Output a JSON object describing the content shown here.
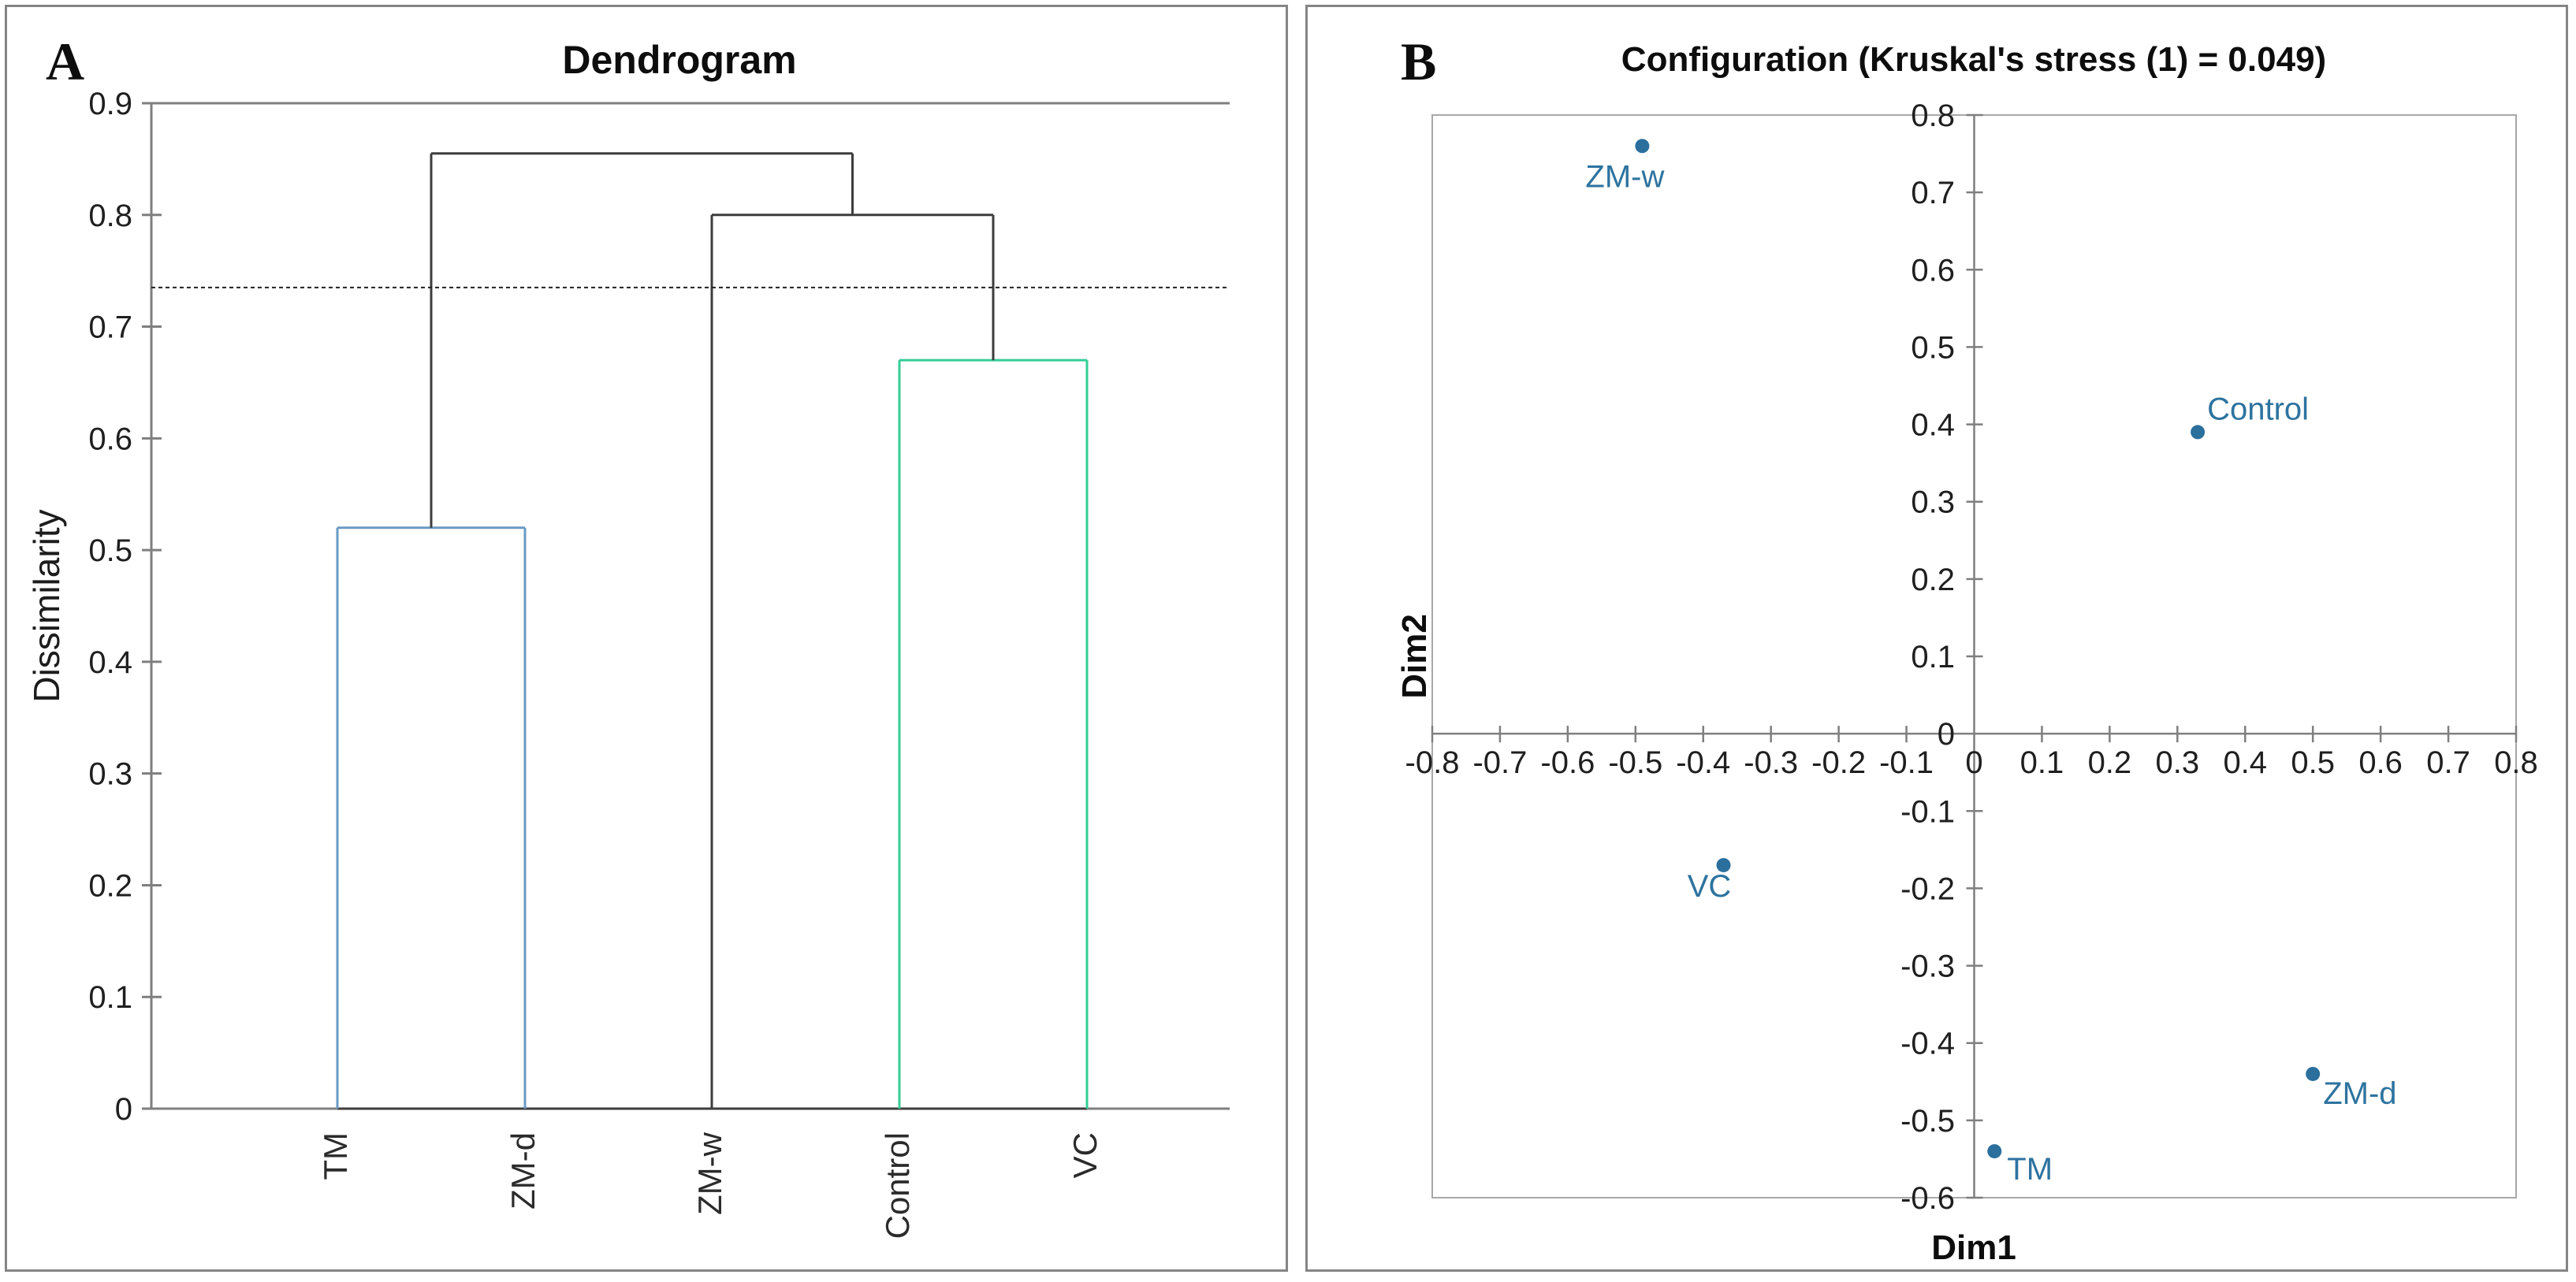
{
  "figure": {
    "panel_a_letter": "A",
    "panel_b_letter": "B"
  },
  "chart_data": [
    {
      "type": "dendrogram",
      "panel": "A",
      "title": "Dendrogram",
      "ylabel": "Dissimilarity",
      "ylim": [
        0,
        0.9
      ],
      "ytick_step": 0.1,
      "leaves": [
        "TM",
        "ZM-d",
        "ZM-w",
        "Control",
        "VC"
      ],
      "merges": [
        {
          "id": "c1",
          "children": [
            "TM",
            "ZM-d"
          ],
          "height": 0.52,
          "color": "#6a9ac4"
        },
        {
          "id": "c2",
          "children": [
            "Control",
            "VC"
          ],
          "height": 0.67,
          "color": "#35cd96"
        },
        {
          "id": "c3",
          "children": [
            "ZM-w",
            "c2"
          ],
          "height": 0.8,
          "color": "#3d3d3d"
        },
        {
          "id": "c4",
          "children": [
            "c1",
            "c3"
          ],
          "height": 0.855,
          "color": "#3d3d3d"
        }
      ],
      "threshold_line": 0.735,
      "axis_color": "#7f7f7f",
      "grid": false
    },
    {
      "type": "scatter",
      "panel": "B",
      "title": "Configuration (Kruskal's stress (1) = 0.049)",
      "xlabel": "Dim1",
      "ylabel": "Dim2",
      "xlim": [
        -0.8,
        0.8
      ],
      "ylim": [
        -0.6,
        0.8
      ],
      "xtick_step": 0.1,
      "ytick_step": 0.1,
      "points": [
        {
          "label": "ZM-w",
          "x": -0.49,
          "y": 0.76
        },
        {
          "label": "Control",
          "x": 0.33,
          "y": 0.39
        },
        {
          "label": "VC",
          "x": -0.37,
          "y": -0.17
        },
        {
          "label": "TM",
          "x": 0.03,
          "y": -0.54
        },
        {
          "label": "ZM-d",
          "x": 0.5,
          "y": -0.44
        }
      ],
      "point_color": "#2b6f9d",
      "label_color": "#2d739f",
      "axis_color": "#7f7f7f",
      "box_color": "#a8a8a8",
      "grid": false,
      "legend": null
    }
  ]
}
